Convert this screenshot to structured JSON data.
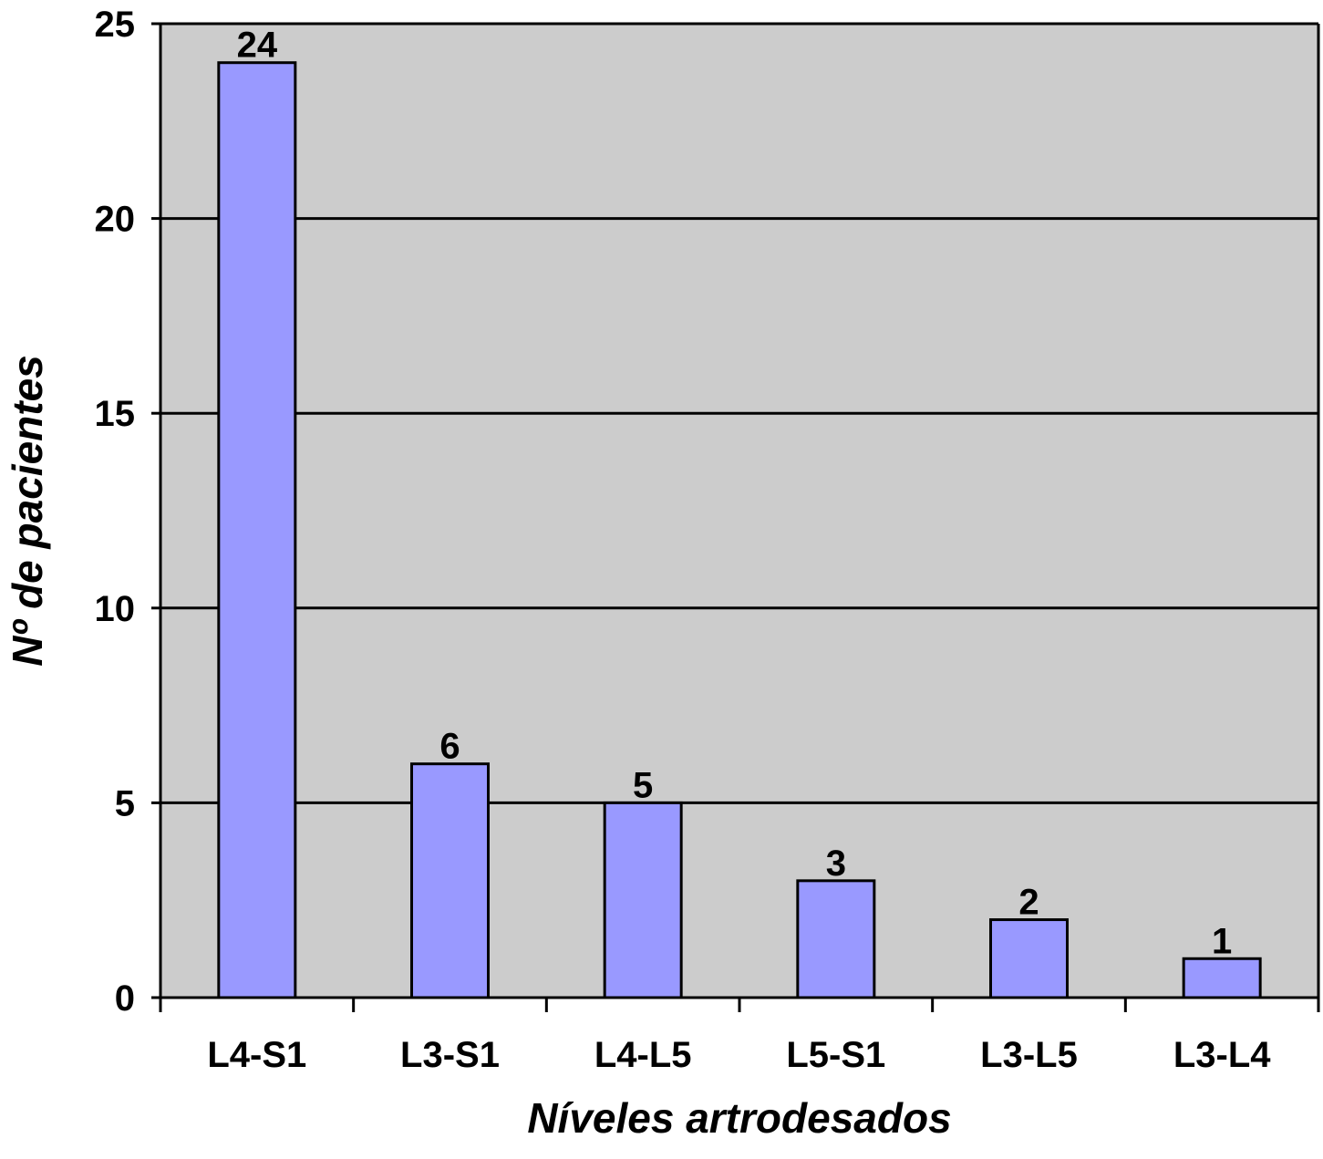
{
  "chart_data": {
    "type": "bar",
    "categories": [
      "L4-S1",
      "L3-S1",
      "L4-L5",
      "L5-S1",
      "L3-L5",
      "L3-L4"
    ],
    "values": [
      24,
      6,
      5,
      3,
      2,
      1
    ],
    "data_labels": [
      "24",
      "6",
      "5",
      "3",
      "2",
      "1"
    ],
    "xlabel": "Níveles artrodesados",
    "ylabel": "Nº de pacientes",
    "ylim": [
      0,
      25
    ],
    "yticks": [
      0,
      5,
      10,
      15,
      20,
      25
    ],
    "grid": true,
    "colors": {
      "bar_fill": "#9999ff",
      "bar_stroke": "#000000",
      "plot_background": "#cccccc",
      "gridline": "#000000"
    }
  }
}
